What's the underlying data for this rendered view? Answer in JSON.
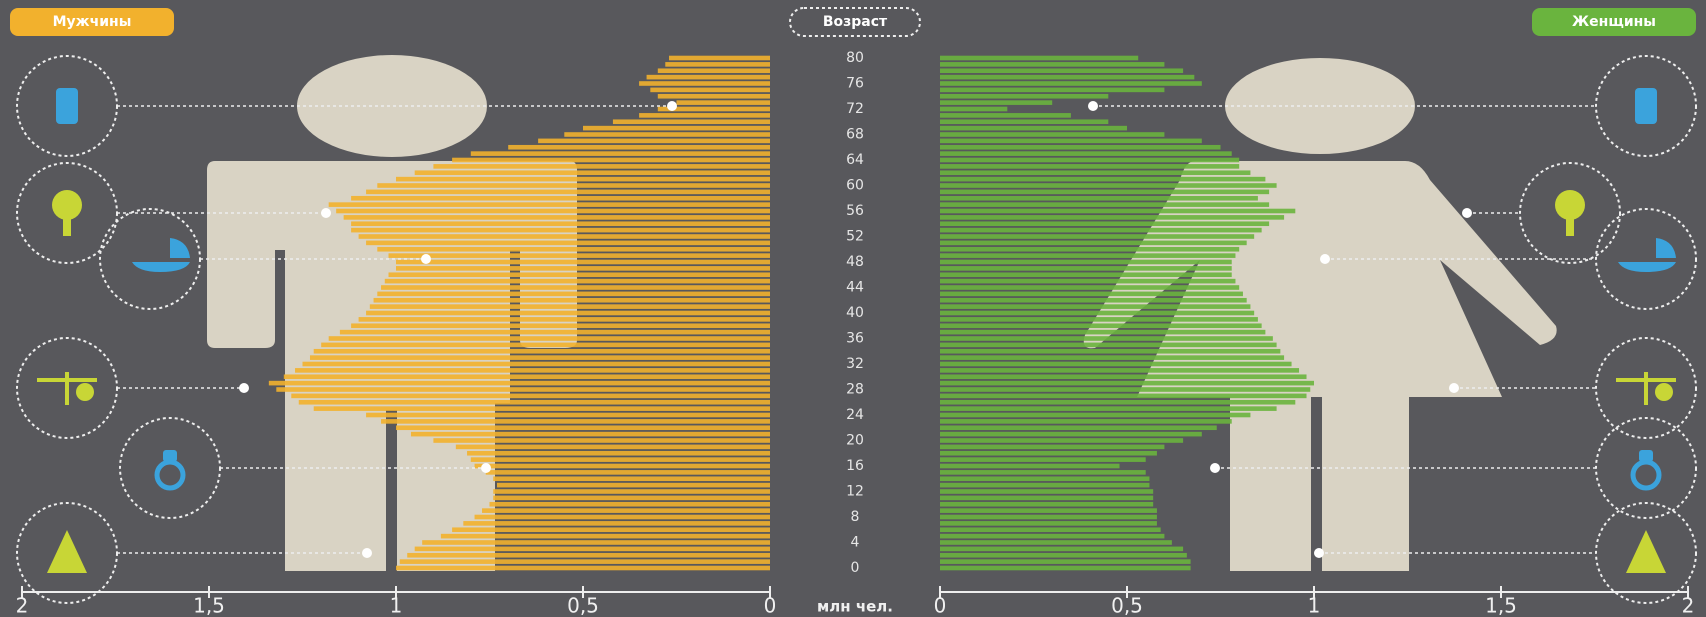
{
  "chart_data": {
    "type": "population-pyramid",
    "y_label": "Возраст",
    "x_label": "млн чел.",
    "categories": [
      0,
      null,
      null,
      null,
      4,
      null,
      null,
      null,
      8,
      null,
      null,
      null,
      12,
      null,
      null,
      null,
      16,
      null,
      null,
      null,
      20,
      null,
      null,
      null,
      24,
      null,
      null,
      null,
      28,
      null,
      null,
      null,
      32,
      null,
      null,
      null,
      36,
      null,
      null,
      null,
      40,
      null,
      null,
      null,
      44,
      null,
      null,
      null,
      48,
      null,
      null,
      null,
      52,
      null,
      null,
      null,
      56,
      null,
      null,
      null,
      60,
      null,
      null,
      null,
      64,
      null,
      null,
      null,
      68,
      null,
      null,
      null,
      72,
      null,
      null,
      null,
      76,
      null,
      null,
      null,
      80
    ],
    "series": [
      {
        "name": "Мужчины",
        "color": "#f2b12d",
        "side": "left",
        "values": [
          1.0,
          0.99,
          0.97,
          0.95,
          0.93,
          0.88,
          0.85,
          0.82,
          0.79,
          0.77,
          0.75,
          0.74,
          0.74,
          0.73,
          0.74,
          0.76,
          0.79,
          0.8,
          0.81,
          0.84,
          0.9,
          0.96,
          1.0,
          1.04,
          1.08,
          1.22,
          1.26,
          1.28,
          1.32,
          1.34,
          1.3,
          1.27,
          1.25,
          1.23,
          1.22,
          1.2,
          1.18,
          1.15,
          1.12,
          1.1,
          1.08,
          1.07,
          1.06,
          1.05,
          1.04,
          1.03,
          1.02,
          1.0,
          1.0,
          1.02,
          1.05,
          1.08,
          1.1,
          1.12,
          1.12,
          1.14,
          1.16,
          1.18,
          1.12,
          1.08,
          1.05,
          1.0,
          0.95,
          0.9,
          0.85,
          0.8,
          0.7,
          0.62,
          0.55,
          0.5,
          0.42,
          0.35,
          0.3,
          0.25,
          0.3,
          0.32,
          0.35,
          0.33,
          0.3,
          0.28,
          0.27
        ]
      },
      {
        "name": "Женщины",
        "color": "#6ab43e",
        "side": "right",
        "values": [
          0.67,
          0.67,
          0.66,
          0.65,
          0.62,
          0.6,
          0.59,
          0.58,
          0.58,
          0.58,
          0.57,
          0.57,
          0.57,
          0.56,
          0.56,
          0.55,
          0.48,
          0.55,
          0.58,
          0.6,
          0.65,
          0.7,
          0.74,
          0.78,
          0.83,
          0.9,
          0.95,
          0.98,
          0.99,
          1.0,
          0.98,
          0.96,
          0.94,
          0.92,
          0.91,
          0.9,
          0.89,
          0.87,
          0.86,
          0.85,
          0.84,
          0.83,
          0.82,
          0.81,
          0.8,
          0.79,
          0.78,
          0.78,
          0.78,
          0.79,
          0.8,
          0.82,
          0.84,
          0.86,
          0.88,
          0.92,
          0.95,
          0.88,
          0.85,
          0.88,
          0.9,
          0.87,
          0.83,
          0.8,
          0.8,
          0.78,
          0.75,
          0.7,
          0.6,
          0.5,
          0.45,
          0.35,
          0.18,
          0.3,
          0.45,
          0.6,
          0.7,
          0.68,
          0.65,
          0.6,
          0.53
        ]
      }
    ],
    "xlim": [
      0,
      2
    ],
    "xticks": [
      0,
      {
        "value": 0.5,
        "label": "0,5"
      },
      1,
      {
        "value": 1.5,
        "label": "1,5"
      },
      2
    ]
  }
}
